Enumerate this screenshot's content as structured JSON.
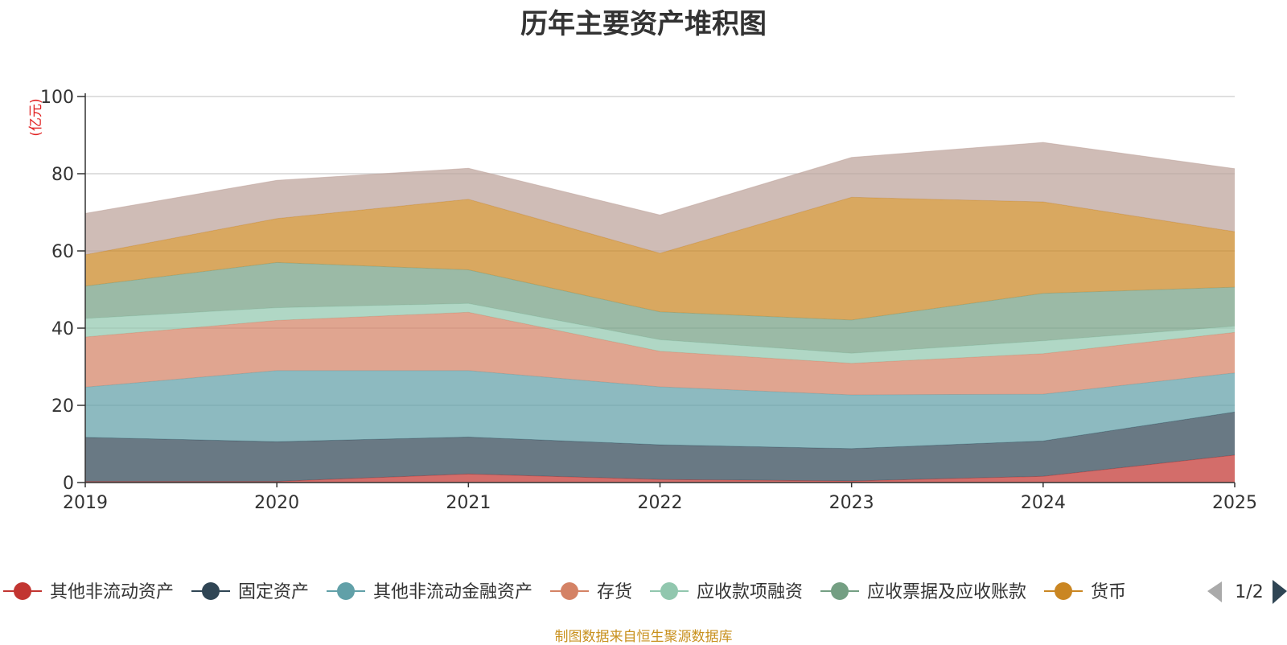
{
  "chart_data": {
    "type": "area",
    "stacked": true,
    "title": "历年主要资产堆积图",
    "ylabel": "(亿元)",
    "xlabel": "",
    "ylim": [
      0,
      100
    ],
    "yticks": [
      0,
      20,
      40,
      60,
      80,
      100
    ],
    "categories": [
      "2019",
      "2020",
      "2021",
      "2022",
      "2023",
      "2024",
      "2025"
    ],
    "series": [
      {
        "name": "其他非流动资产",
        "color": "#c23531",
        "values": [
          0.3,
          0.3,
          2.2,
          0.8,
          0.4,
          1.6,
          7.1
        ]
      },
      {
        "name": "固定资产",
        "color": "#2f4554",
        "values": [
          11.4,
          10.3,
          9.6,
          9.0,
          8.4,
          9.2,
          11.2
        ]
      },
      {
        "name": "其他非流动金融资产",
        "color": "#61a0a8",
        "values": [
          13.0,
          18.4,
          17.2,
          15.0,
          13.9,
          12.1,
          10.1
        ]
      },
      {
        "name": "存货",
        "color": "#d48265",
        "values": [
          13.0,
          13.0,
          15.1,
          9.2,
          8.2,
          10.5,
          10.5
        ]
      },
      {
        "name": "应收款项融资",
        "color": "#91c7ae",
        "values": [
          4.8,
          3.3,
          2.3,
          3.0,
          2.6,
          3.3,
          1.6
        ]
      },
      {
        "name": "应收票据及应收账款",
        "color": "#749f83",
        "values": [
          8.4,
          11.7,
          8.7,
          7.2,
          8.6,
          12.3,
          10.1
        ]
      },
      {
        "name": "货币",
        "color": "#ca8622",
        "values": [
          8.1,
          11.4,
          18.3,
          15.2,
          31.8,
          23.7,
          14.4
        ]
      },
      {
        "name": "",
        "color": "#bda29a",
        "values": [
          10.7,
          9.9,
          8.0,
          9.9,
          10.3,
          15.4,
          16.3
        ]
      }
    ],
    "legend": {
      "position": "bottom",
      "page": "1/2"
    }
  },
  "footer": "制图数据来自恒生聚源数据库"
}
